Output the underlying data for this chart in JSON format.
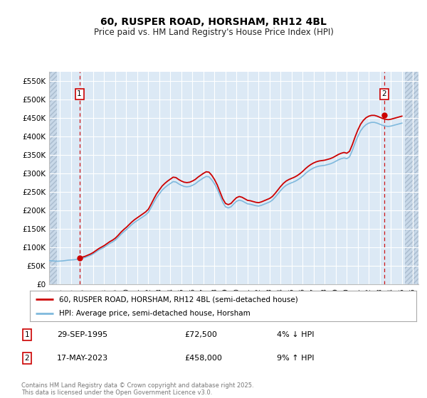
{
  "title": "60, RUSPER ROAD, HORSHAM, RH12 4BL",
  "subtitle": "Price paid vs. HM Land Registry's House Price Index (HPI)",
  "ylim": [
    0,
    575000
  ],
  "yticks": [
    0,
    50000,
    100000,
    150000,
    200000,
    250000,
    300000,
    350000,
    400000,
    450000,
    500000,
    550000
  ],
  "ytick_labels": [
    "£0",
    "£50K",
    "£100K",
    "£150K",
    "£200K",
    "£250K",
    "£300K",
    "£350K",
    "£400K",
    "£450K",
    "£500K",
    "£550K"
  ],
  "xlim_start": 1993.0,
  "xlim_end": 2026.5,
  "sale1_x": 1995.75,
  "sale1_y": 72500,
  "sale1_label": "1",
  "sale2_x": 2023.38,
  "sale2_y": 458000,
  "sale2_label": "2",
  "hpi_color": "#7fb9dd",
  "price_color": "#cc0000",
  "dashed_color": "#cc0000",
  "plot_bg_color": "#dce9f5",
  "hatch_bg_color": "#c8d8e8",
  "legend_line1": "60, RUSPER ROAD, HORSHAM, RH12 4BL (semi-detached house)",
  "legend_line2": "HPI: Average price, semi-detached house, Horsham",
  "annotation1_date": "29-SEP-1995",
  "annotation1_price": "£72,500",
  "annotation1_hpi": "4% ↓ HPI",
  "annotation2_date": "17-MAY-2023",
  "annotation2_price": "£458,000",
  "annotation2_hpi": "9% ↑ HPI",
  "footer": "Contains HM Land Registry data © Crown copyright and database right 2025.\nThis data is licensed under the Open Government Licence v3.0.",
  "hpi_data_x": [
    1993.0,
    1993.25,
    1993.5,
    1993.75,
    1994.0,
    1994.25,
    1994.5,
    1994.75,
    1995.0,
    1995.25,
    1995.5,
    1995.75,
    1996.0,
    1996.25,
    1996.5,
    1996.75,
    1997.0,
    1997.25,
    1997.5,
    1997.75,
    1998.0,
    1998.25,
    1998.5,
    1998.75,
    1999.0,
    1999.25,
    1999.5,
    1999.75,
    2000.0,
    2000.25,
    2000.5,
    2000.75,
    2001.0,
    2001.25,
    2001.5,
    2001.75,
    2002.0,
    2002.25,
    2002.5,
    2002.75,
    2003.0,
    2003.25,
    2003.5,
    2003.75,
    2004.0,
    2004.25,
    2004.5,
    2004.75,
    2005.0,
    2005.25,
    2005.5,
    2005.75,
    2006.0,
    2006.25,
    2006.5,
    2006.75,
    2007.0,
    2007.25,
    2007.5,
    2007.75,
    2008.0,
    2008.25,
    2008.5,
    2008.75,
    2009.0,
    2009.25,
    2009.5,
    2009.75,
    2010.0,
    2010.25,
    2010.5,
    2010.75,
    2011.0,
    2011.25,
    2011.5,
    2011.75,
    2012.0,
    2012.25,
    2012.5,
    2012.75,
    2013.0,
    2013.25,
    2013.5,
    2013.75,
    2014.0,
    2014.25,
    2014.5,
    2014.75,
    2015.0,
    2015.25,
    2015.5,
    2015.75,
    2016.0,
    2016.25,
    2016.5,
    2016.75,
    2017.0,
    2017.25,
    2017.5,
    2017.75,
    2018.0,
    2018.25,
    2018.5,
    2018.75,
    2019.0,
    2019.25,
    2019.5,
    2019.75,
    2020.0,
    2020.25,
    2020.5,
    2020.75,
    2021.0,
    2021.25,
    2021.5,
    2021.75,
    2022.0,
    2022.25,
    2022.5,
    2022.75,
    2023.0,
    2023.25,
    2023.5,
    2023.75,
    2024.0,
    2024.25,
    2024.5,
    2024.75,
    2025.0
  ],
  "hpi_data_y": [
    65000,
    64000,
    63500,
    63000,
    63500,
    64000,
    65000,
    66000,
    66500,
    67000,
    68000,
    69500,
    71000,
    73000,
    76000,
    79000,
    83000,
    88000,
    93000,
    97000,
    101000,
    106000,
    111000,
    115000,
    120000,
    127000,
    135000,
    142000,
    148000,
    155000,
    162000,
    168000,
    173000,
    178000,
    183000,
    188000,
    195000,
    208000,
    222000,
    235000,
    245000,
    255000,
    262000,
    268000,
    273000,
    278000,
    277000,
    272000,
    268000,
    265000,
    264000,
    265000,
    268000,
    272000,
    278000,
    283000,
    288000,
    292000,
    291000,
    283000,
    272000,
    258000,
    240000,
    222000,
    210000,
    207000,
    210000,
    218000,
    225000,
    228000,
    226000,
    222000,
    218000,
    217000,
    215000,
    213000,
    212000,
    214000,
    217000,
    220000,
    223000,
    228000,
    236000,
    245000,
    254000,
    262000,
    268000,
    272000,
    275000,
    278000,
    282000,
    287000,
    293000,
    300000,
    306000,
    311000,
    315000,
    318000,
    320000,
    321000,
    322000,
    324000,
    326000,
    329000,
    333000,
    337000,
    340000,
    342000,
    340000,
    345000,
    362000,
    382000,
    400000,
    415000,
    425000,
    432000,
    436000,
    438000,
    438000,
    436000,
    433000,
    430000,
    428000,
    427000,
    428000,
    430000,
    432000,
    434000,
    436000
  ]
}
